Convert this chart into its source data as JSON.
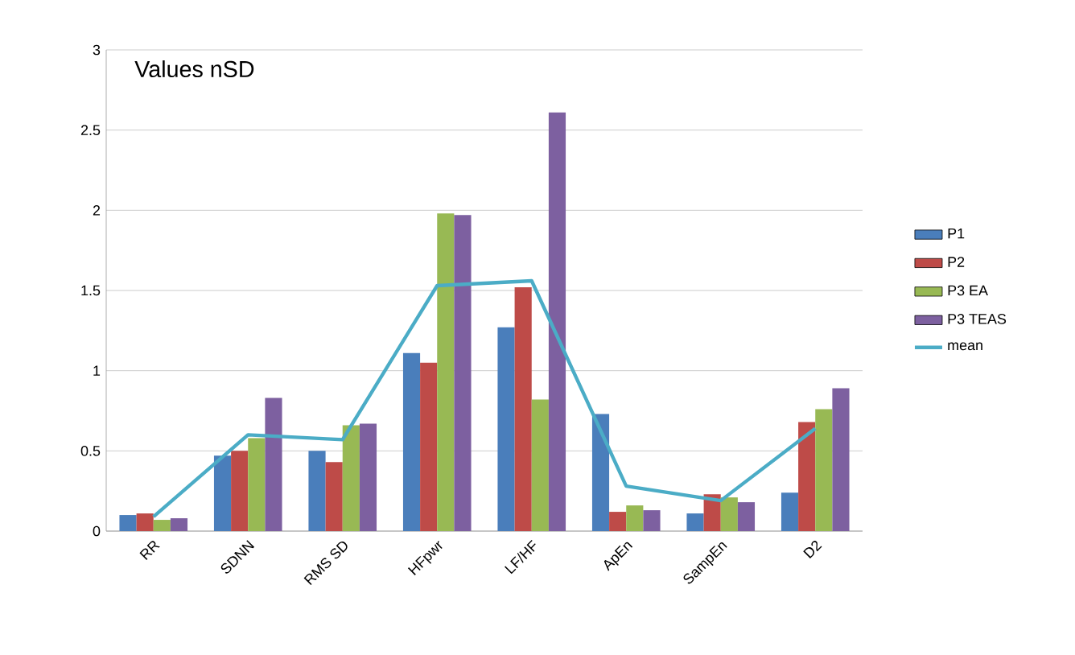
{
  "chart_data": {
    "type": "bar",
    "title": "Values nSD",
    "categories": [
      "RR",
      "SDNN",
      "RMS SD",
      "HFpwr",
      "LF/HF",
      "ApEn",
      "SampEn",
      "D2"
    ],
    "series": [
      {
        "name": "P1",
        "color": "#4a7ebb",
        "values": [
          0.1,
          0.47,
          0.5,
          1.11,
          1.27,
          0.73,
          0.11,
          0.24
        ]
      },
      {
        "name": "P2",
        "color": "#be4b48",
        "values": [
          0.11,
          0.5,
          0.43,
          1.05,
          1.52,
          0.12,
          0.23,
          0.68
        ]
      },
      {
        "name": "P3 EA",
        "color": "#98b954",
        "values": [
          0.07,
          0.58,
          0.66,
          1.98,
          0.82,
          0.16,
          0.21,
          0.76
        ]
      },
      {
        "name": "P3 TEAS",
        "color": "#7d60a0",
        "values": [
          0.08,
          0.83,
          0.67,
          1.97,
          2.61,
          0.13,
          0.18,
          0.89
        ]
      },
      {
        "name": "mean",
        "color": "#4bacc6",
        "type": "line",
        "values": [
          0.09,
          0.6,
          0.57,
          1.53,
          1.56,
          0.28,
          0.19,
          0.64
        ]
      }
    ],
    "ylim": [
      0,
      3
    ],
    "yticks": [
      0,
      0.5,
      1,
      1.5,
      2,
      2.5,
      3
    ],
    "grid": "y",
    "legend": "right",
    "marker": "none",
    "line_style": "solid"
  }
}
